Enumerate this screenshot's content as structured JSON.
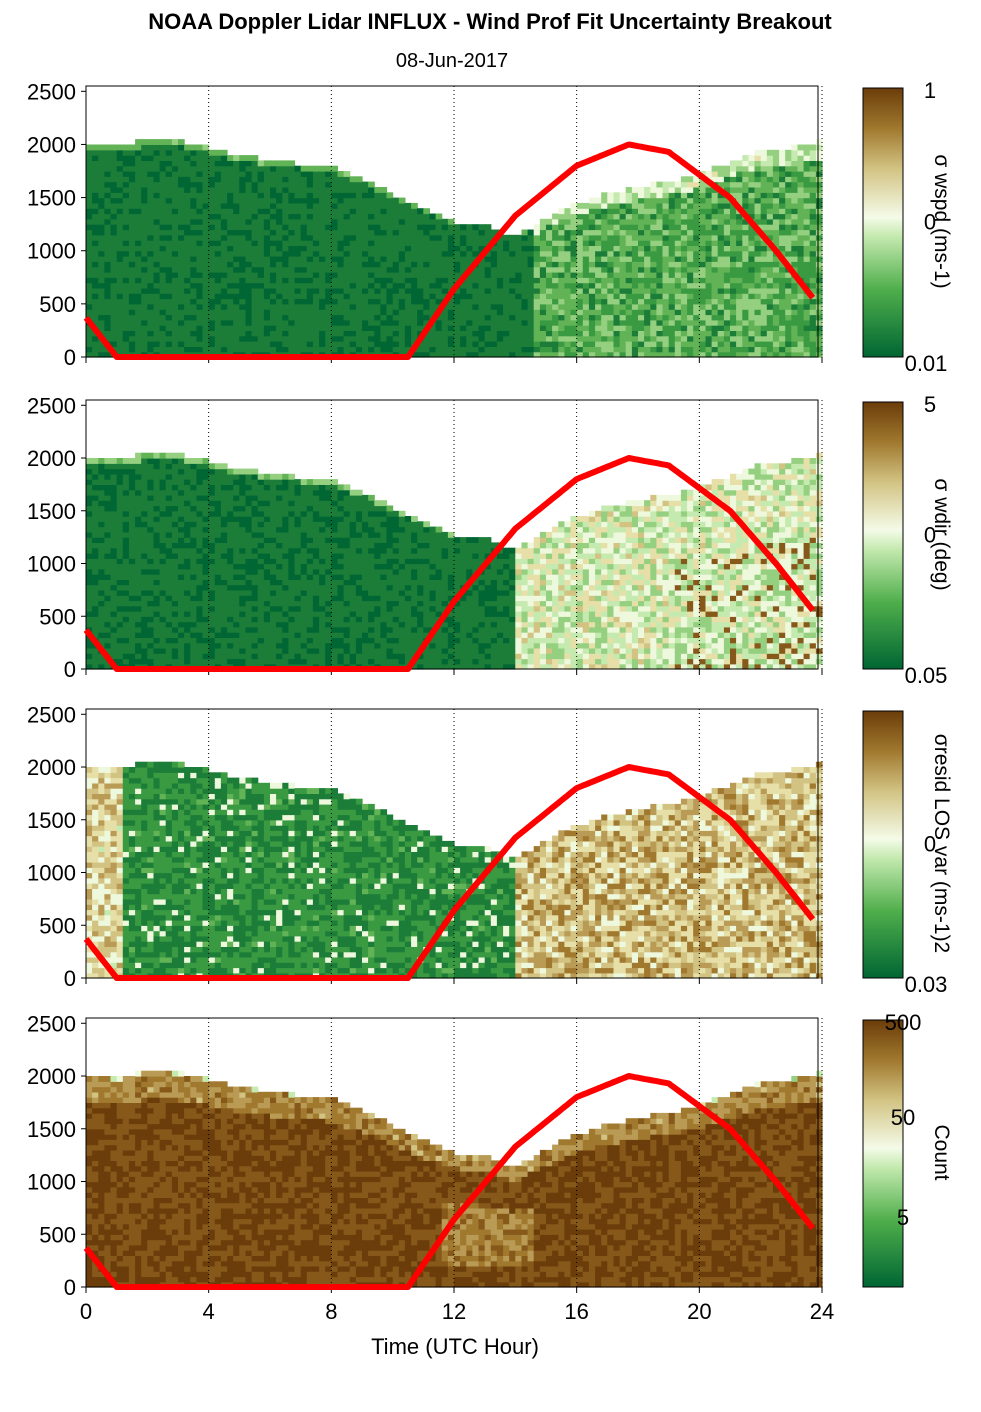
{
  "title": "NOAA Doppler Lidar INFLUX - Wind Prof Fit Uncertainty Breakout",
  "subtitle": "08-Jun-2017",
  "colors": {
    "sun_line": "#ff0000",
    "dark_green": "#006633",
    "mid_green": "#4fae4b",
    "pale": "#eef8dc",
    "tan": "#c8b470",
    "dark_brown": "#6b3d0a"
  },
  "chart_data": [
    {
      "type": "heatmap",
      "xlabel": "",
      "ylabel": "",
      "xlim": [
        0,
        24
      ],
      "ylim": [
        0,
        2550
      ],
      "xticks": [
        "",
        "",
        "",
        "",
        "",
        "",
        ""
      ],
      "yticks": [
        "0",
        "500",
        "1000",
        "1500",
        "2000",
        "2500"
      ],
      "colorbar": {
        "label": "σ wspd (ms-1)",
        "ticks": [
          "1",
          "0",
          "0.01"
        ],
        "scale": "log"
      },
      "top_of_data_height": [
        [
          0,
          2050
        ],
        [
          1,
          2000
        ],
        [
          2,
          2070
        ],
        [
          3,
          2060
        ],
        [
          4,
          2000
        ],
        [
          5,
          1920
        ],
        [
          6,
          1880
        ],
        [
          7,
          1840
        ],
        [
          8,
          1820
        ],
        [
          9,
          1700
        ],
        [
          10,
          1560
        ],
        [
          11,
          1420
        ],
        [
          12,
          1300
        ],
        [
          13,
          1280
        ],
        [
          14,
          1150
        ],
        [
          15,
          1330
        ],
        [
          16,
          1470
        ],
        [
          17,
          1560
        ],
        [
          18,
          1620
        ],
        [
          19,
          1680
        ],
        [
          20,
          1740
        ],
        [
          21,
          1860
        ],
        [
          22,
          1960
        ],
        [
          23,
          2000
        ],
        [
          23.8,
          2050
        ]
      ],
      "sun_elevation_curve": [
        [
          0,
          370
        ],
        [
          1,
          0
        ],
        [
          10.5,
          0
        ],
        [
          12,
          640
        ],
        [
          14,
          1330
        ],
        [
          16,
          1800
        ],
        [
          17.7,
          2000
        ],
        [
          19,
          1930
        ],
        [
          21,
          1500
        ],
        [
          22.5,
          1000
        ],
        [
          23.8,
          520
        ]
      ]
    },
    {
      "type": "heatmap",
      "xlabel": "",
      "ylabel": "",
      "xlim": [
        0,
        24
      ],
      "ylim": [
        0,
        2550
      ],
      "xticks": [
        "",
        "",
        "",
        "",
        "",
        "",
        ""
      ],
      "yticks": [
        "0",
        "500",
        "1000",
        "1500",
        "2000",
        "2500"
      ],
      "colorbar": {
        "label": "σ wdir (deg)",
        "ticks": [
          "5",
          "0",
          "0.05"
        ],
        "scale": "log"
      },
      "top_of_data_height": [
        [
          0,
          2050
        ],
        [
          1,
          2000
        ],
        [
          2,
          2070
        ],
        [
          3,
          2060
        ],
        [
          4,
          2000
        ],
        [
          5,
          1920
        ],
        [
          6,
          1880
        ],
        [
          7,
          1840
        ],
        [
          8,
          1820
        ],
        [
          9,
          1700
        ],
        [
          10,
          1560
        ],
        [
          11,
          1420
        ],
        [
          12,
          1300
        ],
        [
          13,
          1280
        ],
        [
          14,
          1150
        ],
        [
          15,
          1330
        ],
        [
          16,
          1470
        ],
        [
          17,
          1560
        ],
        [
          18,
          1620
        ],
        [
          19,
          1680
        ],
        [
          20,
          1740
        ],
        [
          21,
          1860
        ],
        [
          22,
          1960
        ],
        [
          23,
          2000
        ],
        [
          23.8,
          2050
        ]
      ],
      "sun_elevation_curve": [
        [
          0,
          370
        ],
        [
          1,
          0
        ],
        [
          10.5,
          0
        ],
        [
          12,
          640
        ],
        [
          14,
          1330
        ],
        [
          16,
          1800
        ],
        [
          17.7,
          2000
        ],
        [
          19,
          1930
        ],
        [
          21,
          1500
        ],
        [
          22.5,
          1000
        ],
        [
          23.8,
          520
        ]
      ]
    },
    {
      "type": "heatmap",
      "xlabel": "",
      "ylabel": "",
      "xlim": [
        0,
        24
      ],
      "ylim": [
        0,
        2550
      ],
      "xticks": [
        "",
        "",
        "",
        "",
        "",
        "",
        ""
      ],
      "yticks": [
        "0",
        "500",
        "1000",
        "1500",
        "2000",
        "2500"
      ],
      "colorbar": {
        "label": "σresid LOS var (ms-1)2",
        "ticks": [
          "",
          "0",
          "0.03"
        ],
        "scale": "log"
      },
      "top_of_data_height": [
        [
          0,
          2050
        ],
        [
          1,
          2000
        ],
        [
          2,
          2070
        ],
        [
          3,
          2060
        ],
        [
          4,
          2000
        ],
        [
          5,
          1920
        ],
        [
          6,
          1880
        ],
        [
          7,
          1840
        ],
        [
          8,
          1820
        ],
        [
          9,
          1700
        ],
        [
          10,
          1560
        ],
        [
          11,
          1420
        ],
        [
          12,
          1300
        ],
        [
          13,
          1280
        ],
        [
          14,
          1150
        ],
        [
          15,
          1330
        ],
        [
          16,
          1470
        ],
        [
          17,
          1560
        ],
        [
          18,
          1620
        ],
        [
          19,
          1680
        ],
        [
          20,
          1740
        ],
        [
          21,
          1860
        ],
        [
          22,
          1960
        ],
        [
          23,
          2000
        ],
        [
          23.8,
          2050
        ]
      ],
      "sun_elevation_curve": [
        [
          0,
          370
        ],
        [
          1,
          0
        ],
        [
          10.5,
          0
        ],
        [
          12,
          640
        ],
        [
          14,
          1330
        ],
        [
          16,
          1800
        ],
        [
          17.7,
          2000
        ],
        [
          19,
          1930
        ],
        [
          21,
          1500
        ],
        [
          22.5,
          1000
        ],
        [
          23.8,
          520
        ]
      ]
    },
    {
      "type": "heatmap",
      "xlabel": "Time (UTC Hour)",
      "ylabel": "",
      "xlim": [
        0,
        24
      ],
      "ylim": [
        0,
        2550
      ],
      "xticks": [
        "0",
        "4",
        "8",
        "12",
        "16",
        "20",
        "24"
      ],
      "yticks": [
        "0",
        "500",
        "1000",
        "1500",
        "2000",
        "2500"
      ],
      "colorbar": {
        "label": "Count",
        "ticks": [
          "500",
          "50",
          "5"
        ],
        "scale": "log"
      },
      "top_of_data_height": [
        [
          0,
          2050
        ],
        [
          1,
          2000
        ],
        [
          2,
          2070
        ],
        [
          3,
          2060
        ],
        [
          4,
          2000
        ],
        [
          5,
          1920
        ],
        [
          6,
          1880
        ],
        [
          7,
          1840
        ],
        [
          8,
          1820
        ],
        [
          9,
          1700
        ],
        [
          10,
          1560
        ],
        [
          11,
          1420
        ],
        [
          12,
          1300
        ],
        [
          13,
          1280
        ],
        [
          14,
          1150
        ],
        [
          15,
          1330
        ],
        [
          16,
          1470
        ],
        [
          17,
          1560
        ],
        [
          18,
          1620
        ],
        [
          19,
          1680
        ],
        [
          20,
          1740
        ],
        [
          21,
          1860
        ],
        [
          22,
          1960
        ],
        [
          23,
          2000
        ],
        [
          23.8,
          2050
        ]
      ],
      "sun_elevation_curve": [
        [
          0,
          370
        ],
        [
          1,
          0
        ],
        [
          10.5,
          0
        ],
        [
          12,
          640
        ],
        [
          14,
          1330
        ],
        [
          16,
          1800
        ],
        [
          17.7,
          2000
        ],
        [
          19,
          1930
        ],
        [
          21,
          1500
        ],
        [
          22.5,
          1000
        ],
        [
          23.8,
          520
        ]
      ]
    }
  ]
}
